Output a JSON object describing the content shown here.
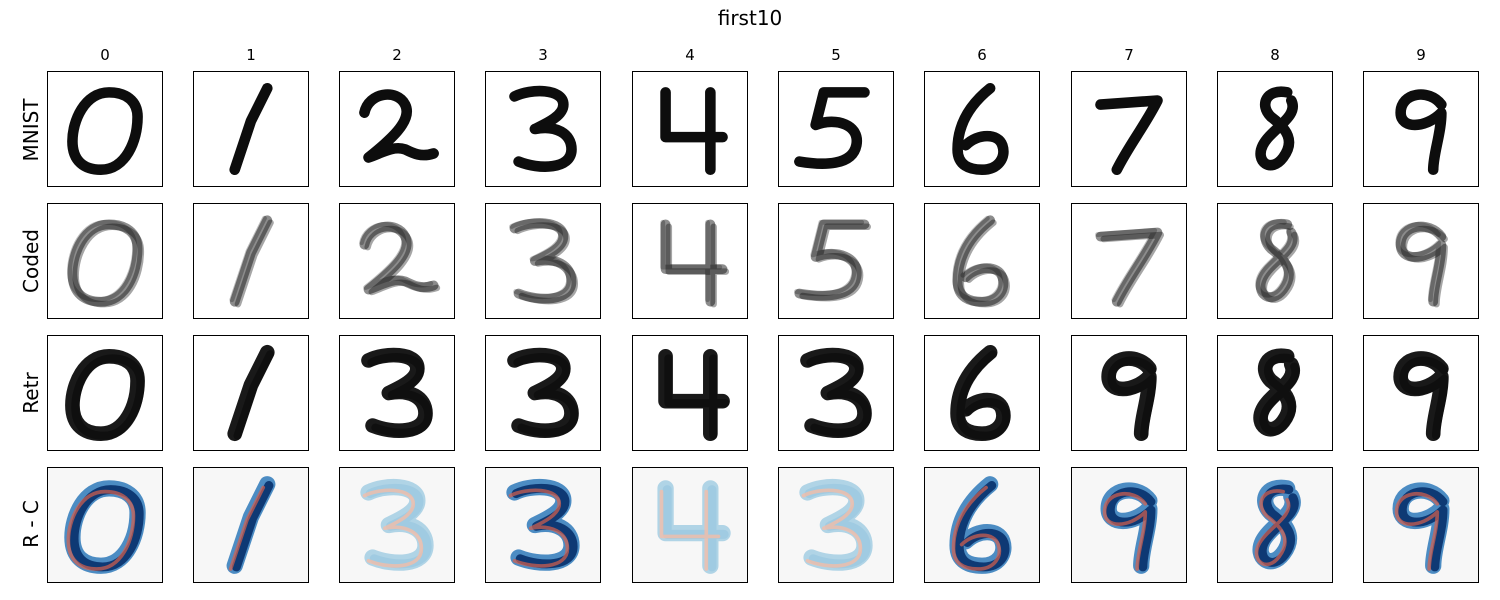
{
  "figure": {
    "title": "first10",
    "columns": [
      "0",
      "1",
      "2",
      "3",
      "4",
      "5",
      "6",
      "7",
      "8",
      "9"
    ],
    "rows": [
      {
        "label": "MNIST",
        "style": "mnist"
      },
      {
        "label": "Coded",
        "style": "coded"
      },
      {
        "label": "Retr",
        "style": "retr"
      },
      {
        "label": "R - C",
        "style": "diff"
      }
    ],
    "colors": {
      "ink": "#000000",
      "diff_background": "#f7f7f7",
      "diff_positive": "#08306b",
      "diff_mid_positive": "#2171b5",
      "diff_light_positive": "#9ecae1",
      "diff_negative": "#d6604d",
      "diff_light_negative": "#fcbba1"
    }
  }
}
